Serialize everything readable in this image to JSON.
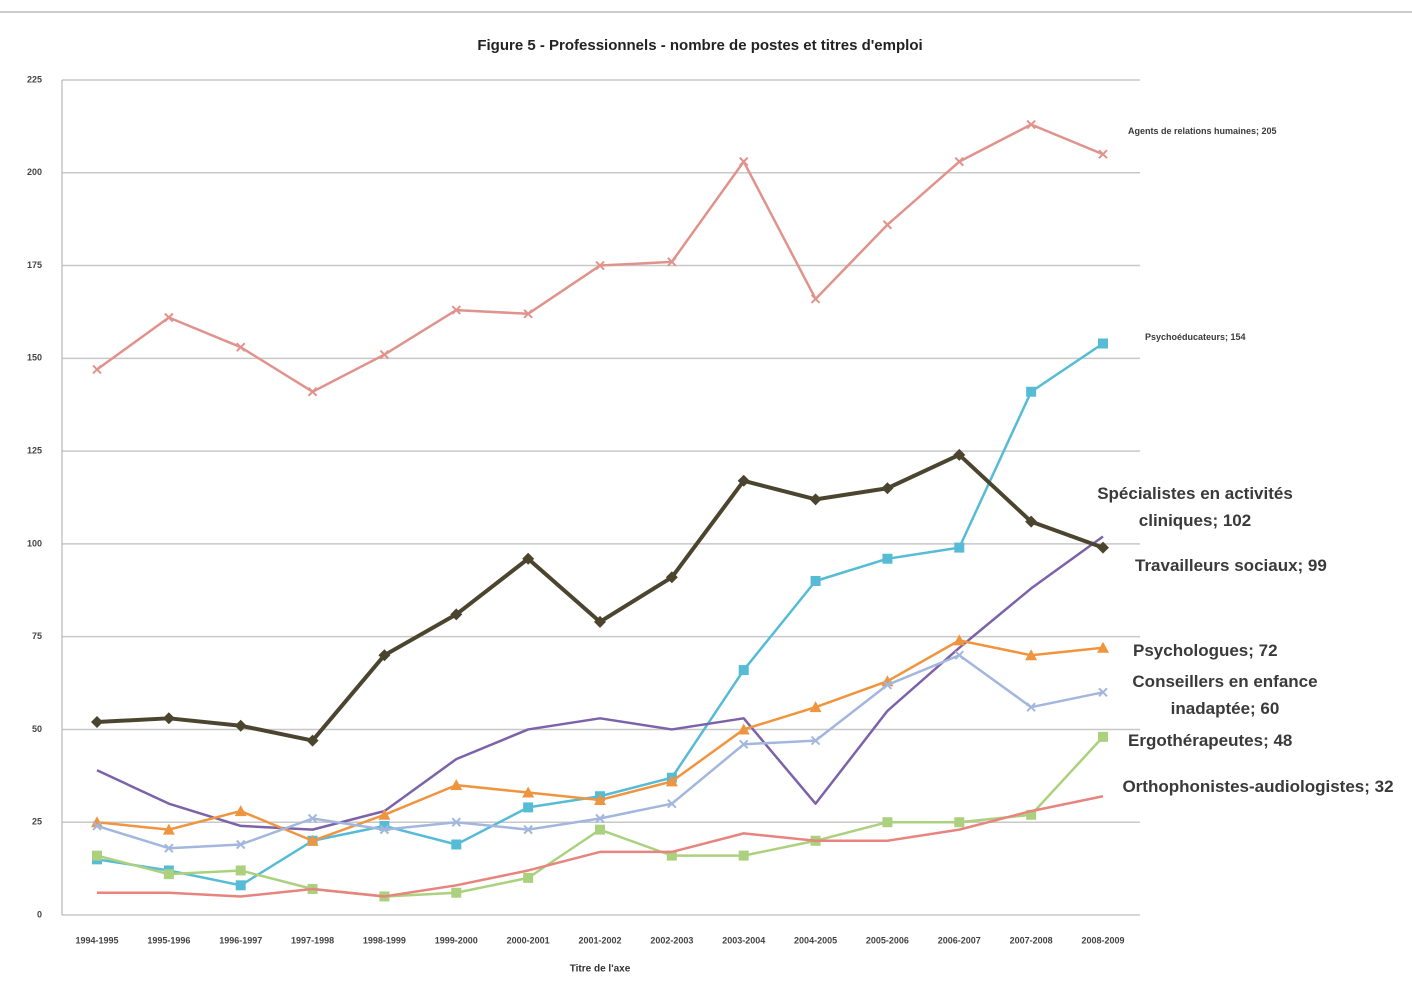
{
  "chart_data": {
    "type": "line",
    "title": "Figure 5 - Professionnels - nombre de postes et titres d'emploi",
    "x_label": "Titre de l'axe",
    "categories": [
      "1994-1995",
      "1995-1996",
      "1996-1997",
      "1997-1998",
      "1998-1999",
      "1999-2000",
      "2000-2001",
      "2001-2002",
      "2002-2003",
      "2003-2004",
      "2004-2005",
      "2005-2006",
      "2006-2007",
      "2007-2008",
      "2008-2009"
    ],
    "ylim": [
      0,
      225
    ],
    "yticks": [
      0,
      25,
      50,
      75,
      100,
      125,
      150,
      175,
      200,
      225
    ],
    "grid": true,
    "series": [
      {
        "label": "Agents de relations humaines; 205",
        "color": "#e0938c",
        "marker": "x",
        "values": [
          147,
          161,
          153,
          141,
          151,
          163,
          162,
          175,
          176,
          203,
          166,
          186,
          203,
          213,
          205
        ]
      },
      {
        "label": "Psychoéducateurs; 154",
        "color": "#56bcd6",
        "marker": "square",
        "values": [
          15,
          12,
          8,
          20,
          24,
          19,
          29,
          32,
          37,
          66,
          90,
          96,
          99,
          141,
          154
        ]
      },
      {
        "label": "Spécialistes en activités cliniques; 102",
        "color": "#7c62a8",
        "marker": "none",
        "values": [
          39,
          30,
          24,
          23,
          28,
          42,
          50,
          53,
          50,
          53,
          30,
          55,
          72,
          88,
          102
        ]
      },
      {
        "label": "Travailleurs sociaux; 99",
        "color": "#4b4530",
        "marker": "diamond",
        "values": [
          52,
          53,
          51,
          47,
          70,
          81,
          96,
          79,
          91,
          117,
          112,
          115,
          124,
          106,
          99
        ]
      },
      {
        "label": "Psychologues; 72",
        "color": "#f0953f",
        "marker": "triangle",
        "values": [
          25,
          23,
          28,
          20,
          27,
          35,
          33,
          31,
          36,
          50,
          56,
          63,
          74,
          70,
          72
        ]
      },
      {
        "label": "Conseillers en enfance inadaptée; 60",
        "color": "#a3b7de",
        "marker": "x",
        "values": [
          24,
          18,
          19,
          26,
          23,
          25,
          23,
          26,
          30,
          46,
          47,
          62,
          70,
          56,
          60
        ]
      },
      {
        "label": "Ergothérapeutes; 48",
        "color": "#abd17e",
        "marker": "square",
        "values": [
          16,
          11,
          12,
          7,
          5,
          6,
          10,
          23,
          16,
          16,
          20,
          25,
          25,
          27,
          48
        ]
      },
      {
        "label": "Orthophonistes-audiologistes; 32",
        "color": "#e8847e",
        "marker": "none",
        "values": [
          6,
          6,
          5,
          7,
          5,
          8,
          12,
          17,
          17,
          22,
          20,
          20,
          23,
          28,
          32
        ]
      }
    ]
  }
}
